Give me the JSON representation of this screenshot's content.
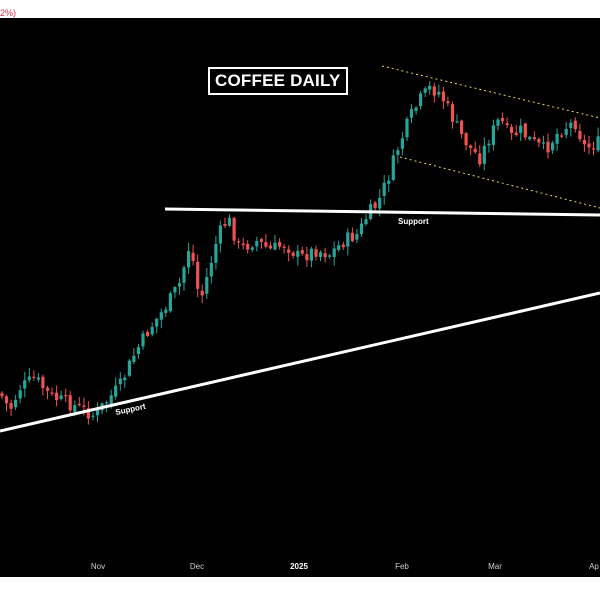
{
  "chart_data": {
    "type": "candlestick",
    "title": "COFFEE DAILY",
    "corner_text": "2%)",
    "x_tick_labels": [
      "Nov",
      "Dec",
      "2025",
      "Feb",
      "Mar",
      "Ap"
    ],
    "colors": {
      "up": "#26a69a",
      "down": "#ef5350",
      "background": "#000000",
      "trendline": "#ffffff",
      "channel": "#e8d56a",
      "label_text": "#e0303e"
    },
    "annotations": [
      {
        "type": "horizontal_line",
        "label": "Support"
      },
      {
        "type": "rising_trendline",
        "label": "Support"
      },
      {
        "type": "descending_channel",
        "style": "dotted"
      }
    ],
    "trend_description": "Uptrend from Nov to mid-Jan, breakout above horizontal support late Jan, rally to Feb highs, then consolidation in a descending channel through Mar-Apr."
  }
}
